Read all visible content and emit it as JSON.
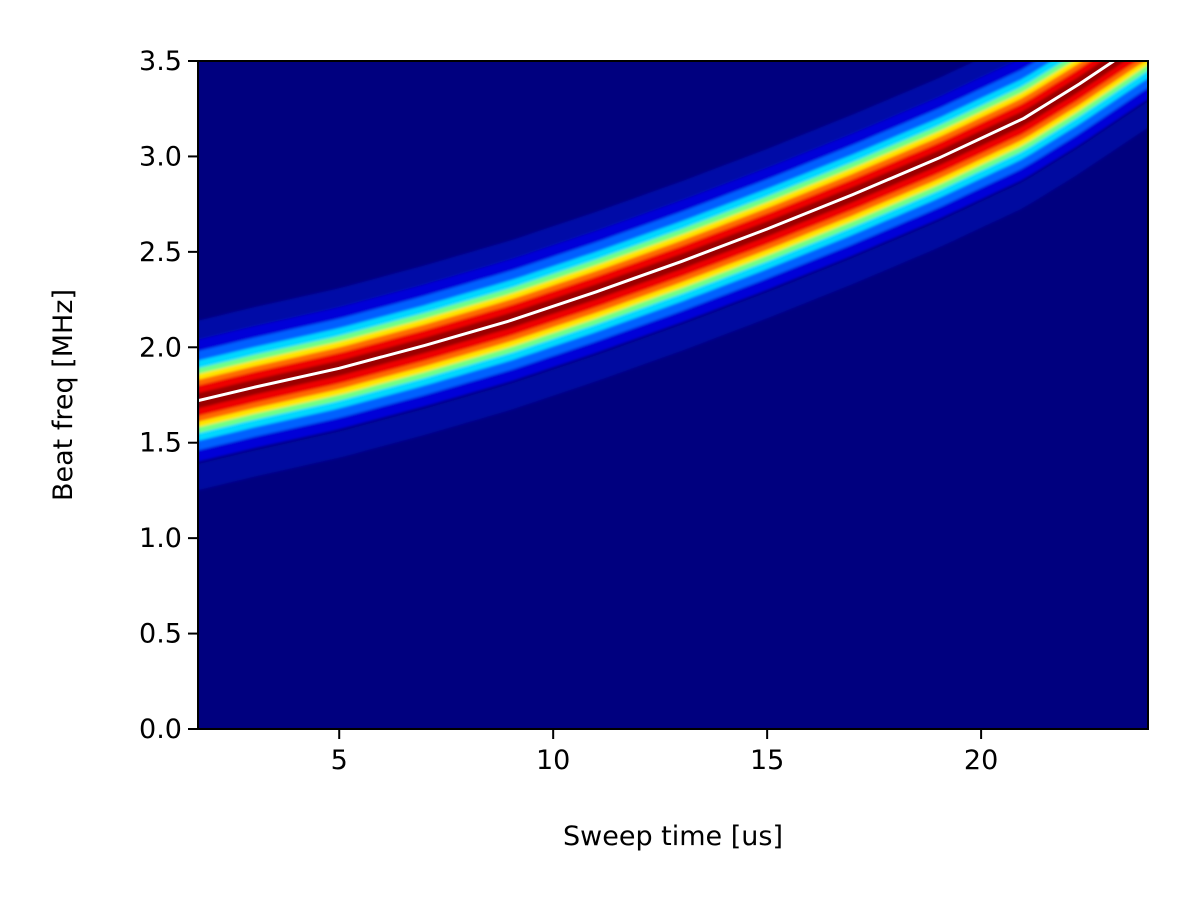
{
  "chart_data": {
    "type": "heatmap",
    "title": "",
    "xlabel": "Sweep time [us]",
    "ylabel": "Beat freq [MHz]",
    "xlim": [
      1.7,
      23.9
    ],
    "ylim": [
      0.0,
      3.5
    ],
    "xticks": [
      5,
      10,
      15,
      20
    ],
    "xtick_labels": [
      "5",
      "10",
      "15",
      "20"
    ],
    "yticks": [
      0.0,
      0.5,
      1.0,
      1.5,
      2.0,
      2.5,
      3.0,
      3.5
    ],
    "ytick_labels": [
      "0.0",
      "0.5",
      "1.0",
      "1.5",
      "2.0",
      "2.5",
      "3.0",
      "3.5"
    ],
    "colormap": "jet",
    "grid": false,
    "ridge_line": {
      "color": "#ffffff",
      "x": [
        1.7,
        3,
        5,
        7,
        9,
        11,
        13,
        15,
        17,
        19,
        21,
        22.3,
        23.1
      ],
      "y": [
        1.72,
        1.79,
        1.89,
        2.01,
        2.14,
        2.29,
        2.45,
        2.62,
        2.8,
        2.99,
        3.2,
        3.38,
        3.5
      ]
    }
  }
}
